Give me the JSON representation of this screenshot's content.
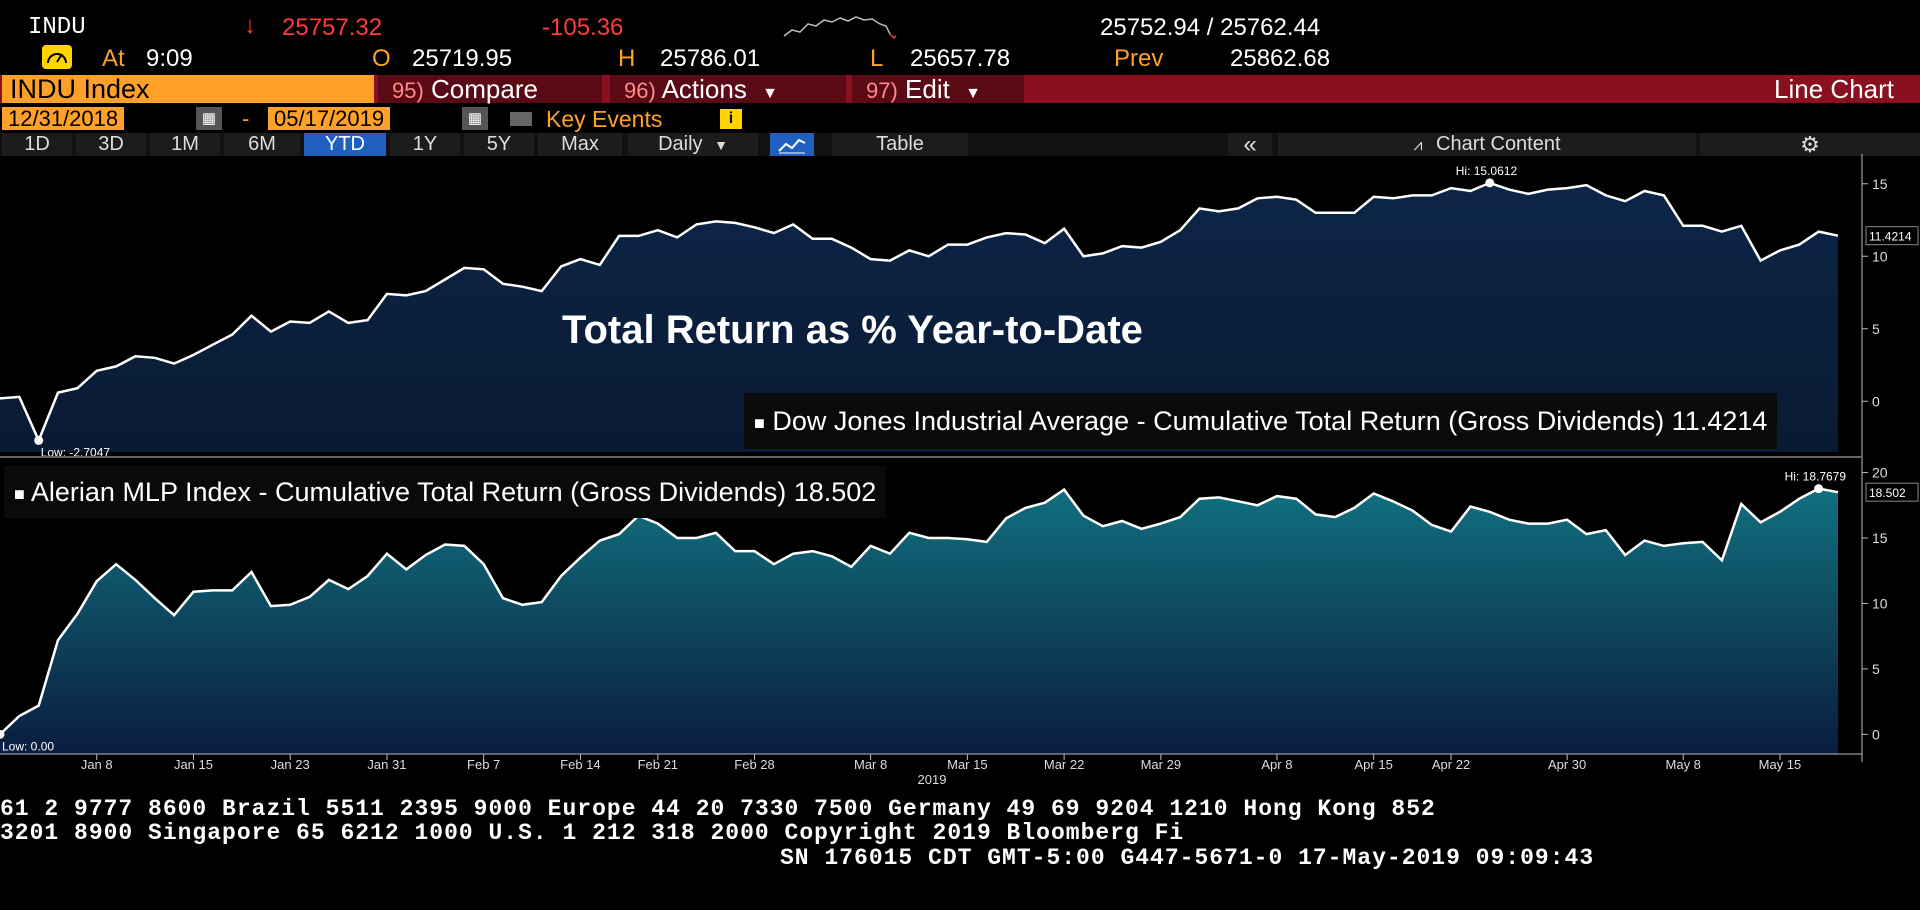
{
  "header": {
    "ticker": "INDU",
    "arrow": "↓",
    "last": "25757.32",
    "change": "-105.36",
    "bidask": "25752.94 / 25762.44",
    "at_label": "At",
    "at_time": "9:09",
    "open_label": "O",
    "open": "25719.95",
    "high_label": "H",
    "high": "25786.01",
    "low_label": "L",
    "low": "25657.78",
    "prev_label": "Prev",
    "prev": "25862.68"
  },
  "toolbar": {
    "index_label": "INDU Index",
    "compare_num": "95)",
    "compare_label": "Compare",
    "actions_num": "96)",
    "actions_label": "Actions",
    "edit_num": "97)",
    "edit_label": "Edit",
    "chart_type": "Line Chart"
  },
  "dates": {
    "start": "12/31/2018",
    "sep": "-",
    "end": "05/17/2019",
    "key_events": "Key Events",
    "info_icon": "i"
  },
  "ranges": {
    "items": [
      "1D",
      "3D",
      "1M",
      "6M",
      "YTD",
      "1Y",
      "5Y",
      "Max"
    ],
    "active": "YTD",
    "frequency": "Daily",
    "table_label": "Table",
    "collapse": "«",
    "chart_content": "Chart Content"
  },
  "chart_title": "Total Return as % Year-to-Date",
  "chart_data": [
    {
      "type": "area",
      "series": [
        {
          "name": "Dow Jones Industrial Average - Cumulative Total Return (Gross Dividends)",
          "last": "11.4214"
        }
      ],
      "legend_text": "Dow Jones Industrial Average - Cumulative Total Return (Gross Dividends) 11.4214",
      "last_label": "11.4214",
      "hi_label": "Hi: 15.0612",
      "low_label": "Low: -2.7047",
      "ylim": [
        -3.5,
        16.5
      ],
      "yticks": [
        "15",
        "10",
        "5",
        "0"
      ],
      "yticks_values": [
        15,
        10,
        5,
        0
      ],
      "values": [
        0.2,
        0.3,
        -2.7,
        0.6,
        0.9,
        2.1,
        2.4,
        3.1,
        3.0,
        2.6,
        3.2,
        3.9,
        4.6,
        5.9,
        4.8,
        5.5,
        5.4,
        6.2,
        5.4,
        5.6,
        7.4,
        7.3,
        7.6,
        8.4,
        9.2,
        9.1,
        8.1,
        7.9,
        7.6,
        9.3,
        9.8,
        9.4,
        11.4,
        11.4,
        11.8,
        11.3,
        12.2,
        12.4,
        12.3,
        12.0,
        11.6,
        12.2,
        11.2,
        11.2,
        10.6,
        9.8,
        9.7,
        10.4,
        10.0,
        10.8,
        10.8,
        11.3,
        11.6,
        11.5,
        10.9,
        11.9,
        10.0,
        10.2,
        10.7,
        10.6,
        11.0,
        11.8,
        13.3,
        13.1,
        13.3,
        14.0,
        14.1,
        13.9,
        13.0,
        13.0,
        13.0,
        14.1,
        14.0,
        14.2,
        14.2,
        14.7,
        14.5,
        15.06,
        14.6,
        14.3,
        14.6,
        14.7,
        14.9,
        14.2,
        13.8,
        14.5,
        14.2,
        12.1,
        12.1,
        11.7,
        12.1,
        9.7,
        10.4,
        10.8,
        11.7,
        11.42
      ]
    },
    {
      "type": "area",
      "series": [
        {
          "name": "Alerian MLP Index - Cumulative Total Return (Gross Dividends)",
          "last": "18.502"
        }
      ],
      "legend_text": "Alerian MLP Index - Cumulative Total Return (Gross Dividends) 18.502",
      "last_label": "18.502",
      "hi_label": "Hi: 18.7679",
      "low_label": "Low: 0.00",
      "ylim": [
        -1.5,
        20.5
      ],
      "yticks": [
        "20",
        "15",
        "10",
        "5",
        "0"
      ],
      "yticks_values": [
        20,
        15,
        10,
        5,
        0
      ],
      "values": [
        0.0,
        1.4,
        2.2,
        7.2,
        9.2,
        11.7,
        13.0,
        11.8,
        10.4,
        9.1,
        10.9,
        11.0,
        11.0,
        12.4,
        9.8,
        9.9,
        10.5,
        11.8,
        11.1,
        12.1,
        13.8,
        12.6,
        13.7,
        14.5,
        14.4,
        13.0,
        10.4,
        9.9,
        10.1,
        12.1,
        13.5,
        14.8,
        15.3,
        16.7,
        16.1,
        15.0,
        15.0,
        15.4,
        14.0,
        14.0,
        13.0,
        13.8,
        14.0,
        13.6,
        12.8,
        14.4,
        13.8,
        15.4,
        15.0,
        15.0,
        14.9,
        14.7,
        16.5,
        17.3,
        17.7,
        18.7,
        16.7,
        15.9,
        16.3,
        15.7,
        16.1,
        16.6,
        18.0,
        18.1,
        17.8,
        17.5,
        18.2,
        18.0,
        16.8,
        16.6,
        17.3,
        18.4,
        17.8,
        17.1,
        16.0,
        15.5,
        17.4,
        17.0,
        16.4,
        16.1,
        16.1,
        16.4,
        15.3,
        15.6,
        13.7,
        14.8,
        14.4,
        14.6,
        14.7,
        13.3,
        17.6,
        16.2,
        17.0,
        18.0,
        18.77,
        18.5
      ]
    }
  ],
  "xaxis": {
    "ticks": [
      "Jan 8",
      "Jan 15",
      "Jan 23",
      "Jan 31",
      "Feb 7",
      "Feb 14",
      "Feb 21",
      "Feb 28",
      "Mar 8",
      "Mar 15",
      "Mar 22",
      "Mar 29",
      "Apr 8",
      "Apr 15",
      "Apr 22",
      "Apr 30",
      "May 8",
      "May 15"
    ],
    "tick_index": [
      5,
      10,
      15,
      20,
      25,
      30,
      34,
      39,
      45,
      50,
      55,
      60,
      66,
      71,
      75,
      81,
      87,
      92
    ],
    "year": "2019"
  },
  "footer": {
    "line1": "61 2 9777 8600 Brazil 5511 2395 9000 Europe 44 20 7330 7500 Germany 49 69 9204 1210 Hong Kong 852",
    "line2": " 3201 8900        Singapore 65 6212 1000       U.S. 1 212 318 2000        Copyright 2019 Bloomberg Fi",
    "line3": "SN 176015 CDT  GMT-5:00 G447-5671-0 17-May-2019 09:09:43"
  },
  "colors": {
    "top_fill": "#0b1f3a",
    "bottom_fill": "#0f6b7a",
    "accent": "#ffa028",
    "tab_bar": "#8a0f1f",
    "down": "#ff3b3b"
  }
}
